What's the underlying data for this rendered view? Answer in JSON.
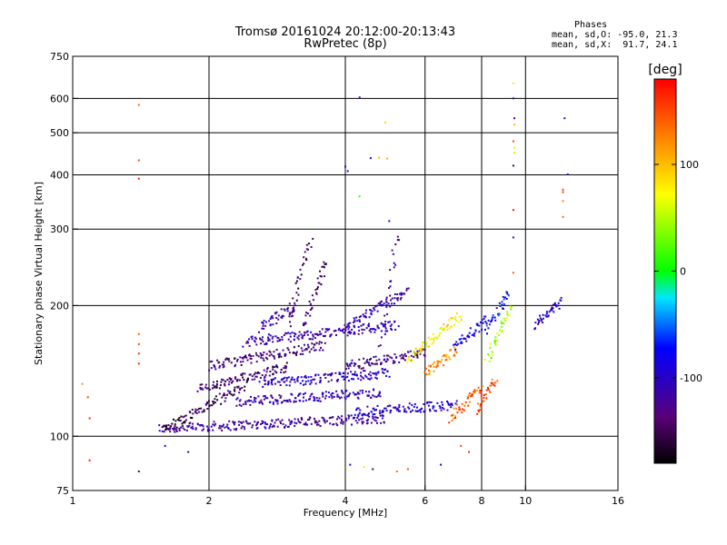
{
  "chart_data": {
    "type": "scatter",
    "title": "Tromsø 20161024 20:12:00-20:13:43",
    "subtitle": "RwPretec (8p)",
    "xlabel": "Frequency [MHz]",
    "ylabel": "Stationary phase Virtual Height [km]",
    "x_scale": "log",
    "y_scale": "log",
    "xlim": [
      1,
      16
    ],
    "ylim": [
      75,
      750
    ],
    "x_ticks": [
      1,
      2,
      4,
      6,
      8,
      10,
      16
    ],
    "y_ticks": [
      75,
      100,
      200,
      300,
      400,
      500,
      600,
      750
    ],
    "x_grid": [
      2,
      4,
      6,
      8,
      10
    ],
    "y_grid": [
      100,
      200,
      300,
      400,
      500,
      600
    ],
    "grid": true,
    "colorbar": {
      "label": "[deg]",
      "ticks": [
        100,
        0,
        -100
      ],
      "range": [
        -180,
        180
      ],
      "colormap": "rainbow (black at -180 to red at +180)"
    },
    "phase_stats": {
      "header": "Phases",
      "o_line": "mean, sd,O: -95.0, 21.3",
      "x_line": "mean, sd,X:  91.7, 24.1"
    },
    "traces": [
      {
        "f0": 1.55,
        "f1": 4.9,
        "h0": 104,
        "h1": 110,
        "phase": -120
      },
      {
        "f0": 1.6,
        "f1": 2.4,
        "h0": 104,
        "h1": 131,
        "phase": -150
      },
      {
        "f0": 1.9,
        "f1": 3.0,
        "h0": 128,
        "h1": 145,
        "phase": -140
      },
      {
        "f0": 2.0,
        "f1": 3.6,
        "h0": 145,
        "h1": 162,
        "phase": -135
      },
      {
        "f0": 2.4,
        "f1": 5.2,
        "h0": 165,
        "h1": 180,
        "phase": -110
      },
      {
        "f0": 2.6,
        "f1": 3.1,
        "h0": 178,
        "h1": 200,
        "phase": -120
      },
      {
        "f0": 3.0,
        "f1": 3.35,
        "h0": 180,
        "h1": 285,
        "phase": -145
      },
      {
        "f0": 3.2,
        "f1": 3.65,
        "h0": 175,
        "h1": 255,
        "phase": -140
      },
      {
        "f0": 2.6,
        "f1": 5.0,
        "h0": 132,
        "h1": 140,
        "phase": -100
      },
      {
        "f0": 2.3,
        "f1": 4.8,
        "h0": 120,
        "h1": 126,
        "phase": -110
      },
      {
        "f0": 4.0,
        "f1": 6.0,
        "h0": 145,
        "h1": 155,
        "phase": -125
      },
      {
        "f0": 4.2,
        "f1": 7.0,
        "h0": 114,
        "h1": 118,
        "phase": -95
      },
      {
        "f0": 4.8,
        "f1": 5.2,
        "h0": 160,
        "h1": 290,
        "phase": -125
      },
      {
        "f0": 4.0,
        "f1": 5.5,
        "h0": 180,
        "h1": 215,
        "phase": -110
      },
      {
        "f0": 5.5,
        "f1": 7.2,
        "h0": 150,
        "h1": 190,
        "phase": 80
      },
      {
        "f0": 6.0,
        "f1": 7.0,
        "h0": 140,
        "h1": 158,
        "phase": 120
      },
      {
        "f0": 6.8,
        "f1": 8.0,
        "h0": 110,
        "h1": 130,
        "phase": 140
      },
      {
        "f0": 7.0,
        "f1": 8.2,
        "h0": 160,
        "h1": 185,
        "phase": -90
      },
      {
        "f0": 8.2,
        "f1": 9.3,
        "h0": 150,
        "h1": 200,
        "phase": 40
      },
      {
        "f0": 8.2,
        "f1": 9.2,
        "h0": 175,
        "h1": 215,
        "phase": -80
      },
      {
        "f0": 10.5,
        "f1": 12.0,
        "h0": 180,
        "h1": 205,
        "phase": -100
      },
      {
        "f0": 7.8,
        "f1": 8.6,
        "h0": 115,
        "h1": 135,
        "phase": 150
      }
    ],
    "isolated_points": [
      {
        "x": 1.4,
        "y": 580,
        "phase": 140
      },
      {
        "x": 1.4,
        "y": 432,
        "phase": 150
      },
      {
        "x": 1.4,
        "y": 392,
        "phase": 170
      },
      {
        "x": 1.4,
        "y": 172,
        "phase": 140
      },
      {
        "x": 1.4,
        "y": 163,
        "phase": 150
      },
      {
        "x": 1.4,
        "y": 155,
        "phase": 160
      },
      {
        "x": 1.4,
        "y": 147,
        "phase": 165
      },
      {
        "x": 1.4,
        "y": 83,
        "phase": -140
      },
      {
        "x": 1.05,
        "y": 132,
        "phase": 120
      },
      {
        "x": 1.08,
        "y": 123,
        "phase": 150
      },
      {
        "x": 1.09,
        "y": 110,
        "phase": 160
      },
      {
        "x": 1.09,
        "y": 88,
        "phase": 170
      },
      {
        "x": 4.3,
        "y": 603,
        "phase": -130
      },
      {
        "x": 4.0,
        "y": 418,
        "phase": -110
      },
      {
        "x": 4.05,
        "y": 408,
        "phase": -115
      },
      {
        "x": 4.55,
        "y": 437,
        "phase": -100
      },
      {
        "x": 4.75,
        "y": 438,
        "phase": 100
      },
      {
        "x": 4.95,
        "y": 436,
        "phase": 110
      },
      {
        "x": 4.3,
        "y": 357,
        "phase": 20
      },
      {
        "x": 4.9,
        "y": 528,
        "phase": 90
      },
      {
        "x": 5.0,
        "y": 313,
        "phase": -100
      },
      {
        "x": 9.4,
        "y": 650,
        "phase": 80
      },
      {
        "x": 9.4,
        "y": 600,
        "phase": -120
      },
      {
        "x": 9.45,
        "y": 540,
        "phase": -130
      },
      {
        "x": 9.45,
        "y": 522,
        "phase": 100
      },
      {
        "x": 9.4,
        "y": 478,
        "phase": 150
      },
      {
        "x": 9.45,
        "y": 462,
        "phase": 80
      },
      {
        "x": 9.45,
        "y": 450,
        "phase": 60
      },
      {
        "x": 9.4,
        "y": 420,
        "phase": -150
      },
      {
        "x": 9.4,
        "y": 332,
        "phase": 170
      },
      {
        "x": 9.4,
        "y": 287,
        "phase": -110
      },
      {
        "x": 9.4,
        "y": 238,
        "phase": 140
      },
      {
        "x": 12.2,
        "y": 540,
        "phase": -120
      },
      {
        "x": 12.4,
        "y": 401,
        "phase": -110
      },
      {
        "x": 12.1,
        "y": 370,
        "phase": 150
      },
      {
        "x": 12.1,
        "y": 365,
        "phase": 160
      },
      {
        "x": 12.1,
        "y": 348,
        "phase": 120
      },
      {
        "x": 12.1,
        "y": 320,
        "phase": 140
      },
      {
        "x": 1.8,
        "y": 92,
        "phase": -150
      },
      {
        "x": 1.6,
        "y": 95,
        "phase": -90
      },
      {
        "x": 4.1,
        "y": 86,
        "phase": -100
      },
      {
        "x": 4.4,
        "y": 85,
        "phase": 60
      },
      {
        "x": 4.6,
        "y": 84,
        "phase": -130
      },
      {
        "x": 5.5,
        "y": 84,
        "phase": 150
      },
      {
        "x": 6.5,
        "y": 86,
        "phase": -110
      },
      {
        "x": 7.2,
        "y": 95,
        "phase": 150
      },
      {
        "x": 7.5,
        "y": 92,
        "phase": 160
      },
      {
        "x": 5.2,
        "y": 83,
        "phase": 130
      }
    ]
  }
}
